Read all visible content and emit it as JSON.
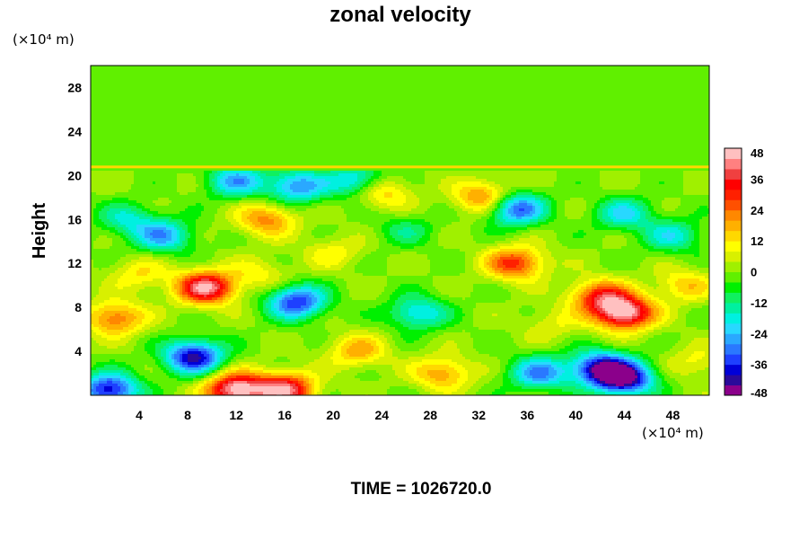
{
  "chart_data": {
    "type": "heatmap",
    "title": "zonal velocity",
    "ylabel": "Height",
    "xlabel": "",
    "x_unit": "(×10⁴ m)",
    "y_unit": "(×10⁴ m)",
    "x_ticks": [
      4,
      8,
      12,
      16,
      20,
      24,
      28,
      32,
      36,
      40,
      44,
      48
    ],
    "y_ticks": [
      4,
      8,
      12,
      16,
      20,
      24,
      28
    ],
    "xlim": [
      0,
      51
    ],
    "ylim": [
      0,
      30
    ],
    "footer": "TIME = 1026720.0",
    "colorbar": {
      "ticks": [
        48,
        36,
        24,
        12,
        0,
        -12,
        -24,
        -36,
        -48
      ],
      "range": [
        -48,
        48
      ],
      "colors": [
        "#8b008b",
        "#2a0a9a",
        "#0000d8",
        "#1e40ff",
        "#2a78ff",
        "#2aa8ff",
        "#28d8ff",
        "#00f0e0",
        "#00f0a0",
        "#10f060",
        "#00f000",
        "#60f000",
        "#a0f000",
        "#d8f000",
        "#ffff00",
        "#ffd800",
        "#ffb000",
        "#ff8800",
        "#ff5000",
        "#ff2000",
        "#ff0000",
        "#f04040",
        "#ff8080",
        "#ffc0c0"
      ]
    },
    "features": [
      {
        "x": 44,
        "y": 7.5,
        "value": 48
      },
      {
        "x": 12,
        "y": 0.5,
        "value": 48
      },
      {
        "x": 16,
        "y": 0.5,
        "value": 42
      },
      {
        "x": 9.5,
        "y": 9.8,
        "value": 44
      },
      {
        "x": 42,
        "y": 9,
        "value": 30
      },
      {
        "x": 2,
        "y": 7,
        "value": 25
      },
      {
        "x": 35,
        "y": 12,
        "value": 30
      },
      {
        "x": 14.5,
        "y": 16,
        "value": 22
      },
      {
        "x": 24,
        "y": 18.5,
        "value": 18
      },
      {
        "x": 32.5,
        "y": 18,
        "value": 25
      },
      {
        "x": 29,
        "y": 2,
        "value": 20
      },
      {
        "x": 22,
        "y": 4,
        "value": 18
      },
      {
        "x": 49,
        "y": 10,
        "value": 15
      },
      {
        "x": 8.5,
        "y": 3.5,
        "value": -42
      },
      {
        "x": 17,
        "y": 8.5,
        "value": -36
      },
      {
        "x": 44,
        "y": 1.5,
        "value": -45
      },
      {
        "x": 42,
        "y": 2.5,
        "value": -38
      },
      {
        "x": 35,
        "y": 17,
        "value": -35
      },
      {
        "x": 1.5,
        "y": 0.5,
        "value": -40
      },
      {
        "x": 27,
        "y": 7.5,
        "value": -22
      },
      {
        "x": 6,
        "y": 14.5,
        "value": -25
      },
      {
        "x": 44,
        "y": 16.5,
        "value": -20
      },
      {
        "x": 17,
        "y": 19,
        "value": -28
      },
      {
        "x": 12,
        "y": 19.5,
        "value": -25
      },
      {
        "x": 22,
        "y": 19.5,
        "value": -24
      },
      {
        "x": 48,
        "y": 14.5,
        "value": -18
      },
      {
        "x": 37,
        "y": 2,
        "value": -28
      },
      {
        "x": 3,
        "y": 16,
        "value": -16
      },
      {
        "x": 20,
        "y": 13,
        "value": 10
      },
      {
        "x": 26,
        "y": 15,
        "value": -10
      },
      {
        "x": 38,
        "y": 6.5,
        "value": 8
      },
      {
        "x": 14,
        "y": 11,
        "value": 10
      },
      {
        "x": 50,
        "y": 3,
        "value": 10
      },
      {
        "x": 4,
        "y": 11,
        "value": 12
      }
    ]
  }
}
